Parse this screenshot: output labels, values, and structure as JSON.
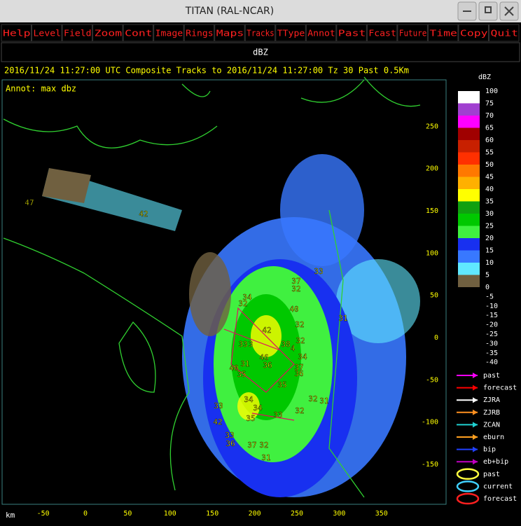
{
  "window": {
    "title": "TITAN (RAL-NCAR)"
  },
  "menu": [
    "Help",
    "Level",
    "Field",
    "Zoom",
    "Cont",
    "Image",
    "Rings",
    "Maps",
    "Tracks",
    "TType",
    "Annot",
    "Past",
    "Fcast",
    "Future",
    "Time",
    "Copy",
    "Quit"
  ],
  "field_label": "dBZ",
  "status_line": "2016/11/24 11:27:00 UTC Composite Tracks to 2016/11/24 11:27:00 Tz 30 Past 0.5Km",
  "annotation": "Annot: max dbz",
  "x_axis": {
    "unit": "km",
    "ticks": [
      -50,
      0,
      50,
      100,
      150,
      200,
      250,
      300,
      350
    ]
  },
  "y_axis": {
    "ticks": [
      250,
      200,
      150,
      100,
      50,
      0,
      -50,
      -100,
      -150
    ]
  },
  "color_scale": {
    "title": "dBZ",
    "levels": [
      100,
      75,
      70,
      65,
      60,
      55,
      50,
      45,
      40,
      35,
      30,
      25,
      20,
      15,
      10,
      5,
      0,
      -5,
      -10,
      -15,
      -20,
      -25,
      -30,
      -35,
      -40
    ],
    "colors": [
      "#ffffff",
      "#a040d0",
      "#ff00ff",
      "#a00000",
      "#c82000",
      "#ff3000",
      "#ff7800",
      "#ffb000",
      "#ffff00",
      "#10a010",
      "#00c800",
      "#40f040",
      "#1830f0",
      "#3878ff",
      "#60e8ff",
      "#706040"
    ]
  },
  "track_legend": [
    {
      "label": "past",
      "color": "#ff00ff",
      "kind": "arrow"
    },
    {
      "label": "forecast",
      "color": "#ff0000",
      "kind": "arrow"
    },
    {
      "label": "ZJRA",
      "color": "#ffffff",
      "kind": "arrow"
    },
    {
      "label": "ZJRB",
      "color": "#ff9020",
      "kind": "arrow"
    },
    {
      "label": "ZCAN",
      "color": "#20d0d0",
      "kind": "arrow"
    },
    {
      "label": "eburn",
      "color": "#ffa020",
      "kind": "arrow"
    },
    {
      "label": "bip",
      "color": "#2040ff",
      "kind": "arrow"
    },
    {
      "label": "eb+bip",
      "color": "#c000c0",
      "kind": "arrow"
    },
    {
      "label": "past",
      "color": "#ffff40",
      "kind": "ellipse"
    },
    {
      "label": "current",
      "color": "#40d0ff",
      "kind": "ellipse"
    },
    {
      "label": "forecast",
      "color": "#ff2020",
      "kind": "ellipse"
    }
  ],
  "storm_labels": [
    47,
    42,
    33,
    37,
    32,
    34,
    32,
    40,
    32,
    31,
    42,
    33,
    3,
    38,
    32,
    4,
    34,
    31,
    46,
    36,
    40,
    35,
    37,
    36,
    35,
    32,
    31,
    34,
    34,
    33,
    35,
    33,
    32,
    42,
    33,
    36,
    37,
    32,
    31
  ]
}
